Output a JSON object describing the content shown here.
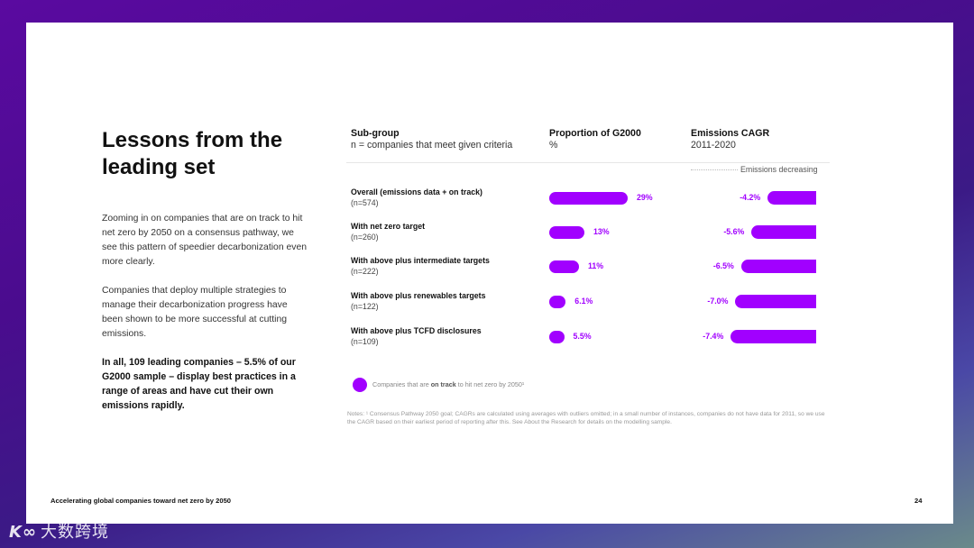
{
  "slide": {
    "title": "Lessons from the leading set",
    "paragraphs": [
      "Zooming in on companies that are on track to hit net zero by 2050 on a consensus pathway, we see this pattern of speedier decarbonization even more clearly.",
      "Companies that deploy multiple strategies to manage their decarbonization progress have been shown to be more successful at cutting emissions.",
      "In all, 109 leading companies – 5.5% of our G2000 sample – display best practices in a range of areas and have cut their own emissions rapidly."
    ],
    "footer": "Accelerating global companies toward net zero by 2050",
    "page_number": "24"
  },
  "chart_headers": {
    "subgroup_title": "Sub-group",
    "subgroup_sub": "n = companies that meet given criteria",
    "proportion_title": "Proportion of G2000",
    "proportion_sub": "%",
    "emissions_title": "Emissions CAGR",
    "emissions_sub": "2011-2020",
    "emissions_direction": "Emissions decreasing"
  },
  "legend": {
    "prefix": "Companies that are ",
    "bold": "on track",
    "suffix": " to hit net zero by 2050¹"
  },
  "notes": "Notes: ¹ Consensus Pathway 2050 goal; CAGRs are calculated using averages with outliers omitted; in a small number of instances, companies do not have data for 2011, so we use the CAGR based on their earliest period of reporting after this. See About the Research for details on the modelling sample.",
  "colors": {
    "accent": "#a100ff"
  },
  "watermark": "大数跨境",
  "chart_data": {
    "type": "bar",
    "categories": [
      "Overall (emissions data + on track)",
      "With net zero target",
      "With above plus intermediate targets",
      "With above plus renewables targets",
      "With above plus TCFD disclosures"
    ],
    "n_labels": [
      "(n=574)",
      "(n=260)",
      "(n=222)",
      "(n=122)",
      "(n=109)"
    ],
    "series": [
      {
        "name": "Proportion of G2000",
        "values": [
          29,
          13,
          11,
          6.1,
          5.5
        ],
        "labels": [
          "29%",
          "13%",
          "11%",
          "6.1%",
          "5.5%"
        ]
      },
      {
        "name": "Emissions CAGR",
        "values": [
          -4.2,
          -5.6,
          -6.5,
          -7.0,
          -7.4
        ],
        "labels": [
          "-4.2%",
          "-5.6%",
          "-6.5%",
          "-7.0%",
          "-7.4%"
        ]
      }
    ]
  }
}
